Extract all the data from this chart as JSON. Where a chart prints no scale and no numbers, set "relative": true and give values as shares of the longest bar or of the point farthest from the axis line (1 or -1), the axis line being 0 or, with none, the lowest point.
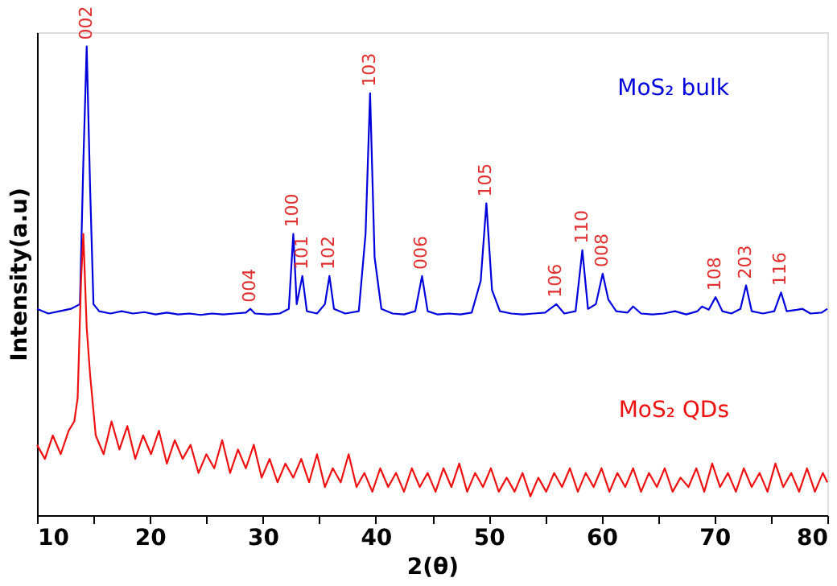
{
  "chart_data": {
    "type": "line",
    "relative": true,
    "xlabel": "2(θ)",
    "ylabel": "Intensity(a.u)",
    "xlim": [
      10,
      80
    ],
    "xticks": [
      {
        "value": 10,
        "label": "10"
      },
      {
        "value": 15,
        "label": null
      },
      {
        "value": 20,
        "label": "20"
      },
      {
        "value": 25,
        "label": null
      },
      {
        "value": 30,
        "label": "30"
      },
      {
        "value": 35,
        "label": null
      },
      {
        "value": 40,
        "label": "40"
      },
      {
        "value": 45,
        "label": null
      },
      {
        "value": 50,
        "label": "50"
      },
      {
        "value": 55,
        "label": null
      },
      {
        "value": 60,
        "label": "60"
      },
      {
        "value": 65,
        "label": null
      },
      {
        "value": 70,
        "label": "70"
      },
      {
        "value": 75,
        "label": null
      },
      {
        "value": 80,
        "label": "80"
      }
    ],
    "tick_labels": "x",
    "grid": false,
    "legend": false,
    "marker": "none",
    "line_style": "solid",
    "series": [
      {
        "name": "MoS₂ bulk",
        "color": "#0000dd",
        "x": [
          10,
          11,
          12,
          13,
          13.8,
          14.1,
          14.4,
          14.7,
          15.0,
          15.5,
          16.5,
          17.5,
          18.5,
          19.5,
          20.5,
          21.5,
          22.5,
          23.5,
          24.5,
          25.5,
          26.5,
          27.5,
          28.5,
          28.9,
          29.3,
          30.5,
          31.5,
          32.3,
          32.7,
          33.0,
          33.5,
          33.9,
          34.8,
          35.5,
          35.9,
          36.3,
          37.3,
          38.5,
          39.1,
          39.5,
          39.9,
          40.5,
          41.5,
          42.5,
          43.5,
          44.1,
          44.6,
          45.5,
          46.5,
          47.5,
          48.5,
          49.3,
          49.8,
          50.3,
          51,
          52,
          53,
          54,
          55,
          56,
          56.7,
          57.7,
          58.3,
          58.8,
          59.5,
          60.1,
          60.6,
          61.3,
          62.3,
          62.8,
          63.5,
          64.5,
          65.5,
          66.5,
          67.5,
          68.5,
          68.9,
          69.5,
          70.1,
          70.7,
          71.5,
          72.3,
          72.8,
          73.3,
          74.3,
          75.3,
          75.9,
          76.4,
          77.3,
          77.8,
          78.5,
          79.5,
          80
        ],
        "values": [
          0.44,
          0.43,
          0.435,
          0.44,
          0.45,
          0.75,
          1.0,
          0.7,
          0.45,
          0.435,
          0.43,
          0.435,
          0.43,
          0.433,
          0.428,
          0.432,
          0.428,
          0.43,
          0.427,
          0.43,
          0.428,
          0.43,
          0.432,
          0.44,
          0.43,
          0.428,
          0.43,
          0.44,
          0.6,
          0.45,
          0.51,
          0.435,
          0.43,
          0.45,
          0.51,
          0.44,
          0.43,
          0.435,
          0.6,
          0.9,
          0.55,
          0.44,
          0.43,
          0.428,
          0.435,
          0.51,
          0.435,
          0.428,
          0.43,
          0.428,
          0.432,
          0.5,
          0.665,
          0.48,
          0.435,
          0.43,
          0.428,
          0.43,
          0.432,
          0.45,
          0.43,
          0.435,
          0.565,
          0.44,
          0.45,
          0.515,
          0.46,
          0.435,
          0.432,
          0.445,
          0.43,
          0.428,
          0.43,
          0.435,
          0.428,
          0.435,
          0.445,
          0.438,
          0.465,
          0.435,
          0.43,
          0.44,
          0.49,
          0.435,
          0.43,
          0.435,
          0.475,
          0.435,
          0.438,
          0.44,
          0.43,
          0.432,
          0.44
        ]
      },
      {
        "name": "MoS₂ QDs",
        "color": "#ee1111",
        "x": [
          10,
          10.7,
          11.4,
          12.1,
          12.8,
          13.3,
          13.6,
          13.9,
          14.1,
          14.4,
          14.7,
          15.2,
          15.9,
          16.6,
          17.3,
          18.0,
          18.7,
          19.4,
          20.1,
          20.8,
          21.5,
          22.2,
          22.9,
          23.6,
          24.3,
          25.0,
          25.7,
          26.4,
          27.1,
          27.8,
          28.5,
          29.2,
          29.9,
          30.6,
          31.3,
          32.0,
          32.7,
          33.4,
          34.1,
          34.8,
          35.5,
          36.2,
          36.9,
          37.6,
          38.3,
          39.0,
          39.7,
          40.4,
          41.1,
          41.8,
          42.5,
          43.2,
          43.9,
          44.6,
          45.3,
          46.0,
          46.7,
          47.4,
          48.1,
          48.8,
          49.5,
          50.2,
          50.9,
          51.6,
          52.3,
          53.0,
          53.7,
          54.4,
          55.1,
          55.8,
          56.5,
          57.2,
          57.9,
          58.6,
          59.3,
          60.0,
          60.7,
          61.4,
          62.1,
          62.8,
          63.5,
          64.2,
          64.9,
          65.6,
          66.3,
          67.0,
          67.7,
          68.4,
          69.1,
          69.8,
          70.5,
          71.2,
          71.9,
          72.6,
          73.3,
          74.0,
          74.7,
          75.4,
          76.1,
          76.8,
          77.5,
          78.2,
          78.9,
          79.6,
          80
        ],
        "values": [
          0.15,
          0.12,
          0.17,
          0.13,
          0.18,
          0.2,
          0.25,
          0.5,
          0.6,
          0.4,
          0.3,
          0.17,
          0.13,
          0.2,
          0.14,
          0.19,
          0.12,
          0.17,
          0.13,
          0.18,
          0.11,
          0.16,
          0.12,
          0.15,
          0.09,
          0.13,
          0.1,
          0.16,
          0.09,
          0.14,
          0.1,
          0.15,
          0.08,
          0.12,
          0.07,
          0.11,
          0.08,
          0.12,
          0.07,
          0.13,
          0.06,
          0.1,
          0.07,
          0.13,
          0.06,
          0.09,
          0.05,
          0.1,
          0.06,
          0.09,
          0.05,
          0.1,
          0.06,
          0.09,
          0.05,
          0.1,
          0.06,
          0.11,
          0.05,
          0.09,
          0.06,
          0.1,
          0.05,
          0.08,
          0.05,
          0.09,
          0.04,
          0.08,
          0.05,
          0.09,
          0.06,
          0.1,
          0.05,
          0.09,
          0.06,
          0.1,
          0.05,
          0.09,
          0.06,
          0.1,
          0.05,
          0.09,
          0.06,
          0.1,
          0.05,
          0.08,
          0.06,
          0.1,
          0.05,
          0.11,
          0.06,
          0.09,
          0.05,
          0.1,
          0.06,
          0.09,
          0.05,
          0.11,
          0.06,
          0.09,
          0.05,
          0.1,
          0.05,
          0.09,
          0.07
        ]
      }
    ],
    "annotations": [
      {
        "text": "002",
        "x": 14.4,
        "y": 1.0
      },
      {
        "text": "004",
        "x": 28.9,
        "y": 0.44
      },
      {
        "text": "100",
        "x": 32.7,
        "y": 0.6
      },
      {
        "text": "101",
        "x": 33.5,
        "y": 0.51
      },
      {
        "text": "102",
        "x": 35.9,
        "y": 0.51
      },
      {
        "text": "103",
        "x": 39.5,
        "y": 0.9
      },
      {
        "text": "006",
        "x": 44.1,
        "y": 0.51
      },
      {
        "text": "105",
        "x": 49.8,
        "y": 0.665
      },
      {
        "text": "106",
        "x": 56.0,
        "y": 0.45
      },
      {
        "text": "110",
        "x": 58.3,
        "y": 0.565
      },
      {
        "text": "008",
        "x": 60.1,
        "y": 0.515
      },
      {
        "text": "108",
        "x": 70.1,
        "y": 0.465
      },
      {
        "text": "203",
        "x": 72.8,
        "y": 0.49
      },
      {
        "text": "116",
        "x": 75.9,
        "y": 0.475
      }
    ]
  }
}
